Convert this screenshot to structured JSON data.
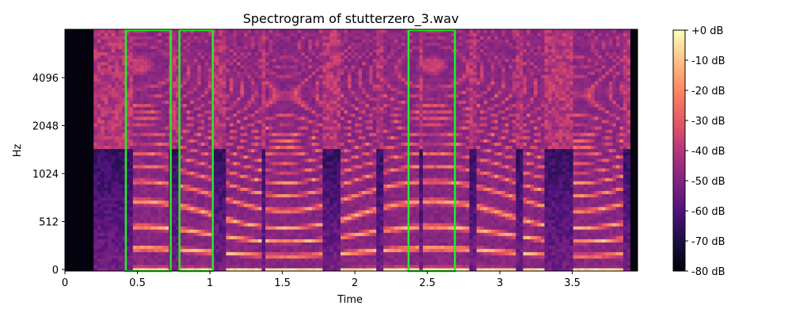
{
  "chart_data": {
    "type": "heatmap",
    "title": "Spectrogram of stutterzero_3.wav",
    "xlabel": "Time",
    "ylabel": "Hz",
    "xlim": [
      0,
      3.95
    ],
    "x_ticks": [
      {
        "value": 0,
        "label": "0"
      },
      {
        "value": 0.5,
        "label": "0.5"
      },
      {
        "value": 1,
        "label": "1"
      },
      {
        "value": 1.5,
        "label": "1.5"
      },
      {
        "value": 2,
        "label": "2"
      },
      {
        "value": 2.5,
        "label": "2.5"
      },
      {
        "value": 3,
        "label": "3"
      },
      {
        "value": 3.5,
        "label": "3.5"
      }
    ],
    "y_scale": "log2",
    "y_ticks": [
      {
        "value": 0,
        "label": "0"
      },
      {
        "value": 512,
        "label": "512"
      },
      {
        "value": 1024,
        "label": "1024"
      },
      {
        "value": 2048,
        "label": "2048"
      },
      {
        "value": 4096,
        "label": "4096"
      }
    ],
    "colorbar": {
      "colormap": "magma",
      "range_db": [
        -80,
        0
      ],
      "ticks": [
        {
          "value": 0,
          "label": "+0 dB"
        },
        {
          "value": -10,
          "label": "-10 dB"
        },
        {
          "value": -20,
          "label": "-20 dB"
        },
        {
          "value": -30,
          "label": "-30 dB"
        },
        {
          "value": -40,
          "label": "-40 dB"
        },
        {
          "value": -50,
          "label": "-50 dB"
        },
        {
          "value": -60,
          "label": "-60 dB"
        },
        {
          "value": -70,
          "label": "-70 dB"
        },
        {
          "value": -80,
          "label": "-80 dB"
        }
      ]
    },
    "highlight_boxes": [
      {
        "t_start": 0.42,
        "t_end": 0.73
      },
      {
        "t_start": 0.79,
        "t_end": 1.02
      },
      {
        "t_start": 2.37,
        "t_end": 2.69
      }
    ],
    "highlight_color": "#22ee22",
    "grid": false
  }
}
